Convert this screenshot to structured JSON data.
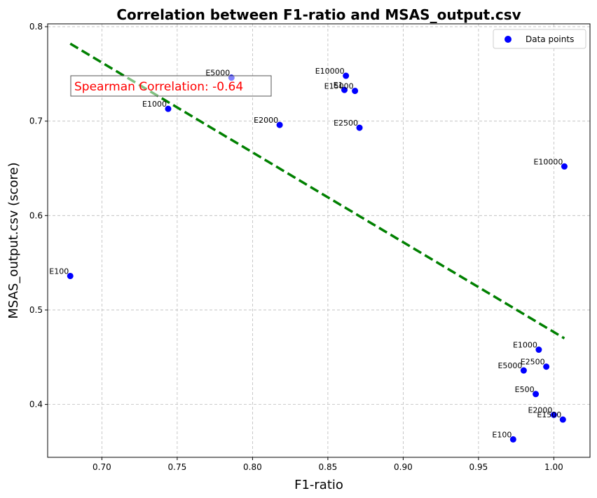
{
  "chart_data": {
    "type": "scatter",
    "title": "Correlation between F1-ratio and MSAS_output.csv",
    "xlabel": "F1-ratio",
    "ylabel": "MSAS_output.csv (score)",
    "xlim": [
      0.664,
      1.024
    ],
    "ylim": [
      0.344,
      0.803
    ],
    "xticks": [
      "0.70",
      "0.75",
      "0.80",
      "0.85",
      "0.90",
      "0.95",
      "1.00"
    ],
    "yticks": [
      "0.4",
      "0.5",
      "0.6",
      "0.7",
      "0.8"
    ],
    "grid": true,
    "legend": {
      "position": "top-right",
      "entries": [
        "Data points"
      ]
    },
    "series": [
      {
        "name": "Data points",
        "color": "#0000ff",
        "points": [
          {
            "x": 0.679,
            "y": 0.536,
            "label": "E100"
          },
          {
            "x": 0.744,
            "y": 0.713,
            "label": "E1000"
          },
          {
            "x": 0.786,
            "y": 0.746,
            "label": "E5000"
          },
          {
            "x": 0.818,
            "y": 0.696,
            "label": "E2000"
          },
          {
            "x": 0.861,
            "y": 0.733,
            "label": "E1"
          },
          {
            "x": 0.862,
            "y": 0.748,
            "label": "E10000"
          },
          {
            "x": 0.868,
            "y": 0.732,
            "label": "E15000"
          },
          {
            "x": 0.871,
            "y": 0.693,
            "label": "E2500"
          },
          {
            "x": 0.973,
            "y": 0.363,
            "label": "E100"
          },
          {
            "x": 0.98,
            "y": 0.436,
            "label": "E5000"
          },
          {
            "x": 0.988,
            "y": 0.411,
            "label": "E500"
          },
          {
            "x": 0.99,
            "y": 0.458,
            "label": "E1000"
          },
          {
            "x": 0.995,
            "y": 0.44,
            "label": "E2500"
          },
          {
            "x": 1.0,
            "y": 0.389,
            "label": "E2000"
          },
          {
            "x": 1.006,
            "y": 0.384,
            "label": "E1500"
          },
          {
            "x": 1.007,
            "y": 0.652,
            "label": "E10000"
          }
        ]
      }
    ],
    "trendline": {
      "x": [
        0.679,
        1.007
      ],
      "y": [
        0.782,
        0.47
      ],
      "color": "#008000",
      "style": "dashed"
    },
    "annotation": {
      "text": "Spearman Correlation: -0.64",
      "color": "#ff0000"
    }
  }
}
